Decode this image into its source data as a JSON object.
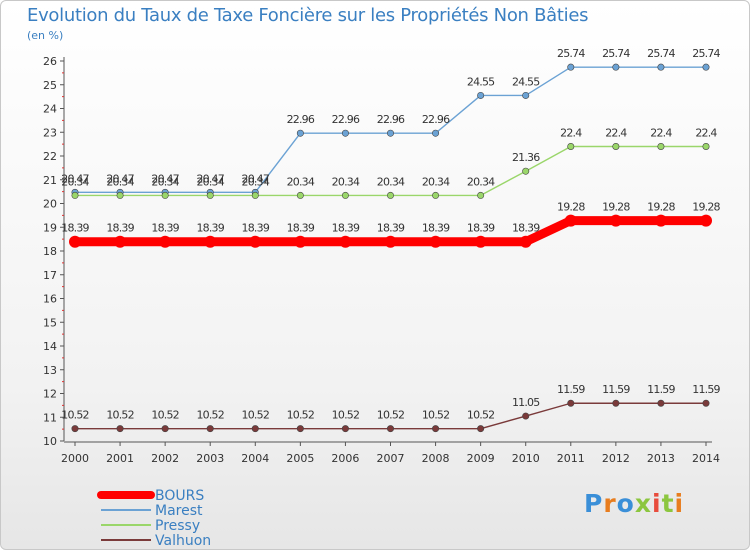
{
  "header": {
    "title": "Evolution du Taux de Taxe Foncière sur les Propriétés Non Bâties",
    "unit": "(en %)"
  },
  "logo": {
    "text": "Proxiti"
  },
  "chart_data": {
    "type": "line",
    "title": "Evolution du Taux de Taxe Foncière sur les Propriétés Non Bâties",
    "ylabel": "(en %)",
    "xlabel": "",
    "categories": [
      "2000",
      "2001",
      "2002",
      "2003",
      "2004",
      "2005",
      "2006",
      "2007",
      "2008",
      "2009",
      "2010",
      "2011",
      "2012",
      "2013",
      "2014"
    ],
    "ylim": [
      10,
      26
    ],
    "yticks": [
      10,
      11,
      12,
      13,
      14,
      15,
      16,
      17,
      18,
      19,
      20,
      21,
      22,
      23,
      24,
      25,
      26
    ],
    "grid": false,
    "legend_position": "bottom-left",
    "series": [
      {
        "name": "BOURS",
        "color": "#ff0000",
        "emphasis": true,
        "values": [
          18.39,
          18.39,
          18.39,
          18.39,
          18.39,
          18.39,
          18.39,
          18.39,
          18.39,
          18.39,
          18.39,
          19.28,
          19.28,
          19.28,
          19.28
        ],
        "labels": [
          "18.39",
          "18.39",
          "18.39",
          "18.39",
          "18.39",
          "18.39",
          "18.39",
          "18.39",
          "18.39",
          "18.39",
          "18.39",
          "19.28",
          "19.28",
          "19.28",
          "19.28"
        ]
      },
      {
        "name": "Marest",
        "color": "#6ba2d4",
        "emphasis": false,
        "values": [
          20.47,
          20.47,
          20.47,
          20.47,
          20.47,
          22.96,
          22.96,
          22.96,
          22.96,
          24.55,
          24.55,
          25.74,
          25.74,
          25.74,
          25.74
        ],
        "labels": [
          "20.47",
          "20.47",
          "20.47",
          "20.47",
          "20.47",
          "22.96",
          "22.96",
          "22.96",
          "22.96",
          "24.55",
          "24.55",
          "25.74",
          "25.74",
          "25.74",
          "25.74"
        ]
      },
      {
        "name": "Pressy",
        "color": "#9ad66a",
        "emphasis": false,
        "values": [
          20.34,
          20.34,
          20.34,
          20.34,
          20.34,
          20.34,
          20.34,
          20.34,
          20.34,
          20.34,
          21.36,
          22.4,
          22.4,
          22.4,
          22.4
        ],
        "labels": [
          "20.34",
          "20.34",
          "20.34",
          "20.34",
          "20.34",
          "20.34",
          "20.34",
          "20.34",
          "20.34",
          "20.34",
          "21.36",
          "22.4",
          "22.4",
          "22.4",
          "22.4"
        ]
      },
      {
        "name": "Valhuon",
        "color": "#7a3a3a",
        "emphasis": false,
        "values": [
          10.52,
          10.52,
          10.52,
          10.52,
          10.52,
          10.52,
          10.52,
          10.52,
          10.52,
          10.52,
          11.05,
          11.59,
          11.59,
          11.59,
          11.59
        ],
        "labels": [
          "10.52",
          "10.52",
          "10.52",
          "10.52",
          "10.52",
          "10.52",
          "10.52",
          "10.52",
          "10.52",
          "10.52",
          "11.05",
          "11.59",
          "11.59",
          "11.59",
          "11.59"
        ]
      }
    ]
  }
}
